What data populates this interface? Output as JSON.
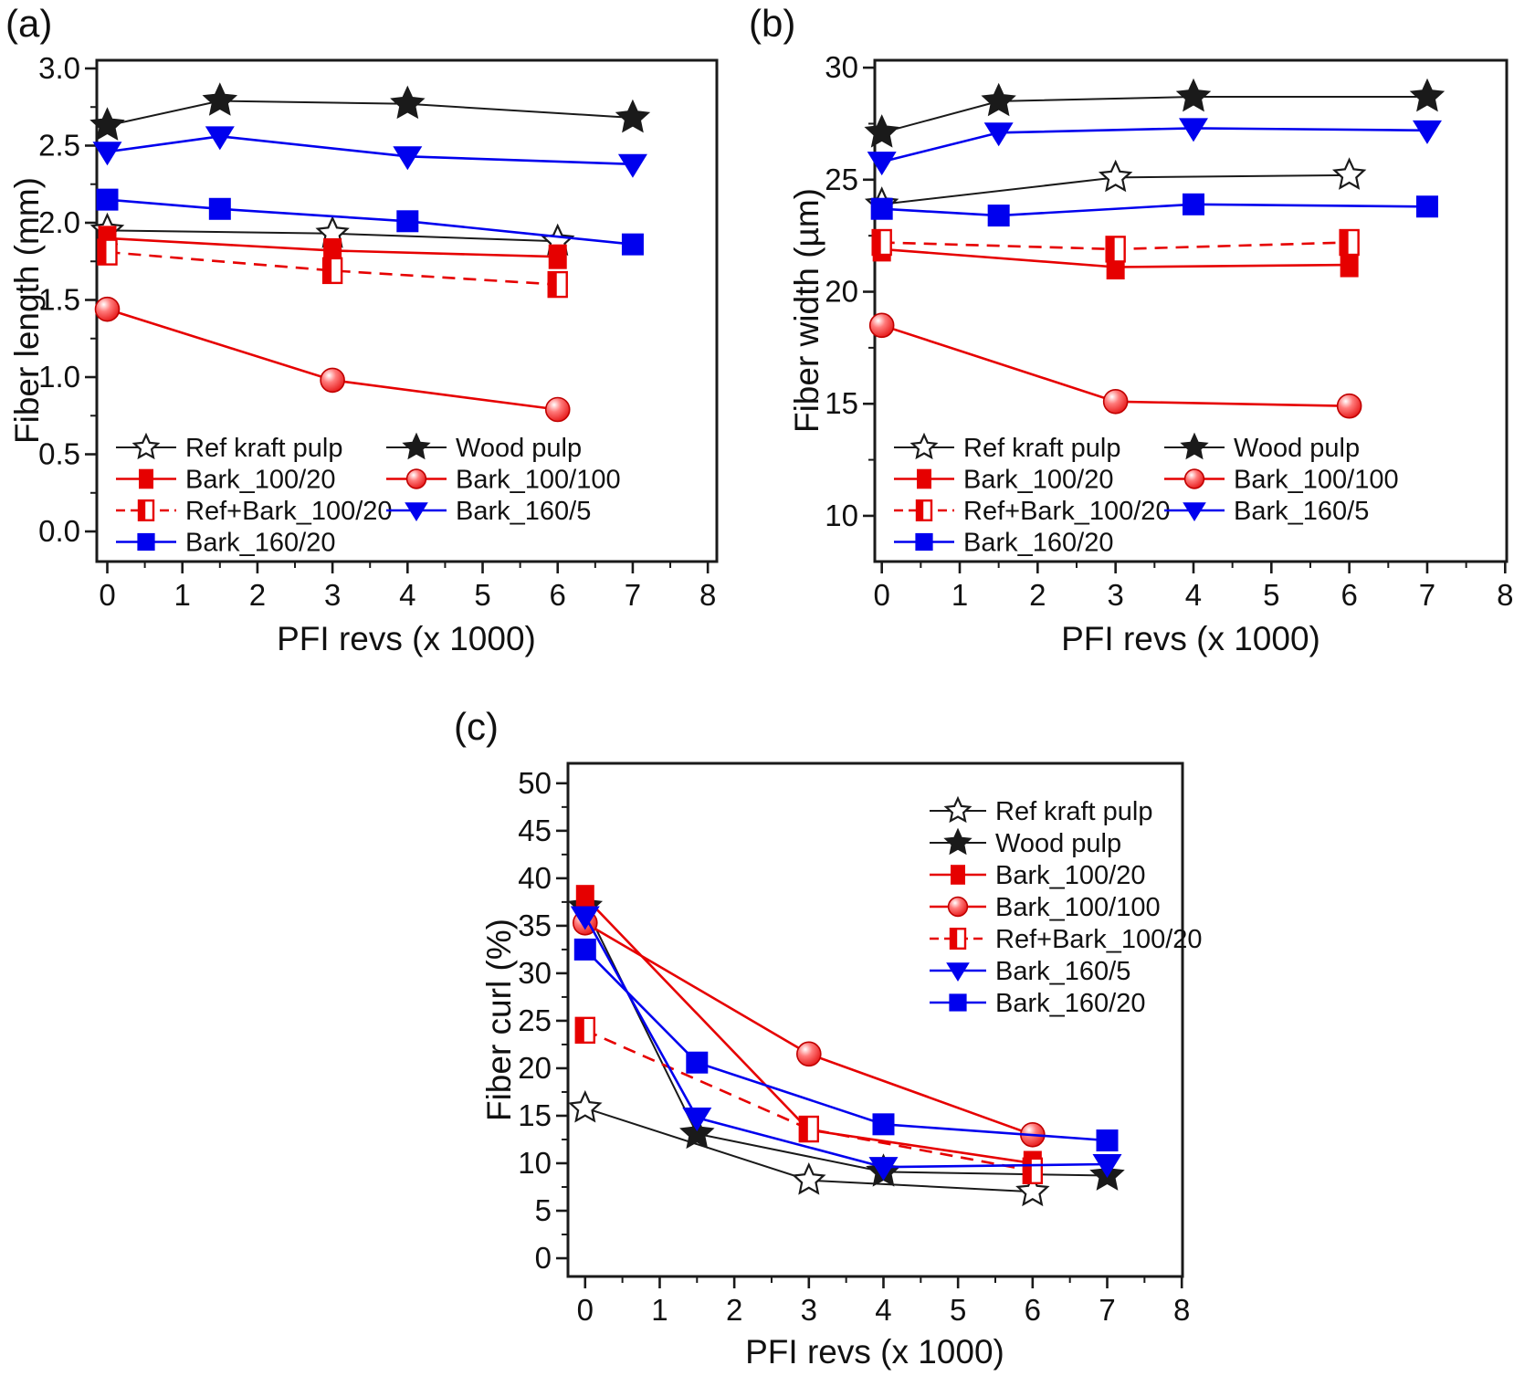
{
  "figure": {
    "description": "Three line charts of pulp fiber properties versus PFI refining revolutions"
  },
  "series_styles": {
    "Ref kraft pulp": {
      "color": "#1a1a1a",
      "marker": "star-open",
      "line": "solid",
      "width": 2.0
    },
    "Wood pulp": {
      "color": "#1a1a1a",
      "marker": "star-filled",
      "line": "solid",
      "width": 2.0
    },
    "Bark_100/20": {
      "color": "#e60000",
      "marker": "square",
      "line": "solid",
      "width": 2.6,
      "msize": [
        20,
        27
      ]
    },
    "Bark_100/100": {
      "color": "#e60000",
      "marker": "ball",
      "line": "solid",
      "width": 2.6
    },
    "Ref+Bark_100/20": {
      "color": "#e60000",
      "marker": "square-half",
      "line": "dashed",
      "width": 2.6,
      "msize": [
        20,
        27
      ]
    },
    "Bark_160/5": {
      "color": "#0000ee",
      "marker": "triangle-down",
      "line": "solid",
      "width": 2.6
    },
    "Bark_160/20": {
      "color": "#0000ee",
      "marker": "square",
      "line": "solid",
      "width": 2.6,
      "msize": [
        24,
        24
      ]
    }
  },
  "chart_data": [
    {
      "id": "a",
      "type": "line",
      "panel_label": "(a)",
      "xlabel": "PFI revs (x 1000)",
      "ylabel": "Fiber length (mm)",
      "xlim": [
        -0.14,
        8.12
      ],
      "ylim": [
        -0.195,
        3.053
      ],
      "xticks": {
        "start": 0,
        "end": 8,
        "step": 1,
        "minor": 0.5,
        "decimals": 0
      },
      "yticks": {
        "start": 0,
        "end": 3,
        "step": 0.5,
        "minor": 0.25,
        "decimals": 1
      },
      "grid": false,
      "legend": {
        "position": "inside-bottom-left",
        "columns": 2
      },
      "series": [
        {
          "name": "Ref kraft pulp",
          "points": [
            [
              0,
              1.95
            ],
            [
              3,
              1.93
            ],
            [
              6,
              1.88
            ]
          ]
        },
        {
          "name": "Wood pulp",
          "points": [
            [
              0,
              2.63
            ],
            [
              1.5,
              2.79
            ],
            [
              4,
              2.77
            ],
            [
              7,
              2.68
            ]
          ]
        },
        {
          "name": "Bark_100/20",
          "points": [
            [
              0,
              1.9
            ],
            [
              3,
              1.82
            ],
            [
              6,
              1.78
            ]
          ]
        },
        {
          "name": "Bark_100/100",
          "points": [
            [
              0,
              1.44
            ],
            [
              3,
              0.98
            ],
            [
              6,
              0.79
            ]
          ]
        },
        {
          "name": "Ref+Bark_100/20",
          "points": [
            [
              0,
              1.81
            ],
            [
              3,
              1.69
            ],
            [
              6,
              1.6
            ]
          ]
        },
        {
          "name": "Bark_160/5",
          "points": [
            [
              0,
              2.46
            ],
            [
              1.5,
              2.56
            ],
            [
              4,
              2.43
            ],
            [
              7,
              2.38
            ]
          ]
        },
        {
          "name": "Bark_160/20",
          "points": [
            [
              0,
              2.15
            ],
            [
              1.5,
              2.09
            ],
            [
              4,
              2.01
            ],
            [
              7,
              1.86
            ]
          ]
        }
      ]
    },
    {
      "id": "b",
      "type": "line",
      "panel_label": "(b)",
      "xlabel": "PFI revs (x 1000)",
      "ylabel": "Fiber width (µm)",
      "xlim": [
        -0.09,
        8.02
      ],
      "ylim": [
        7.96,
        30.33
      ],
      "xticks": {
        "start": 0,
        "end": 8,
        "step": 1,
        "minor": 0.5,
        "decimals": 0
      },
      "yticks": {
        "start": 10,
        "end": 30,
        "step": 5,
        "minor": 2.5,
        "decimals": 0
      },
      "grid": false,
      "legend": {
        "position": "inside-bottom-left",
        "columns": 2
      },
      "series": [
        {
          "name": "Ref kraft pulp",
          "points": [
            [
              0,
              23.9
            ],
            [
              3,
              25.1
            ],
            [
              6,
              25.2
            ]
          ]
        },
        {
          "name": "Wood pulp",
          "points": [
            [
              0,
              27.1
            ],
            [
              1.5,
              28.5
            ],
            [
              4,
              28.7
            ],
            [
              7,
              28.7
            ]
          ]
        },
        {
          "name": "Bark_100/20",
          "points": [
            [
              0,
              21.9
            ],
            [
              3,
              21.1
            ],
            [
              6,
              21.2
            ]
          ]
        },
        {
          "name": "Bark_100/100",
          "points": [
            [
              0,
              18.5
            ],
            [
              3,
              15.1
            ],
            [
              6,
              14.9
            ]
          ]
        },
        {
          "name": "Ref+Bark_100/20",
          "points": [
            [
              0,
              22.2
            ],
            [
              3,
              21.9
            ],
            [
              6,
              22.2
            ]
          ]
        },
        {
          "name": "Bark_160/5",
          "points": [
            [
              0,
              25.8
            ],
            [
              1.5,
              27.1
            ],
            [
              4,
              27.3
            ],
            [
              7,
              27.2
            ]
          ]
        },
        {
          "name": "Bark_160/20",
          "points": [
            [
              0,
              23.7
            ],
            [
              1.5,
              23.4
            ],
            [
              4,
              23.9
            ],
            [
              7,
              23.8
            ]
          ]
        }
      ]
    },
    {
      "id": "c",
      "type": "line",
      "panel_label": "(c)",
      "xlabel": "PFI revs (x 1000)",
      "ylabel": "Fiber curl (%)",
      "xlim": [
        -0.23,
        8.01
      ],
      "ylim": [
        -1.92,
        52.1
      ],
      "xticks": {
        "start": 0,
        "end": 8,
        "step": 1,
        "minor": 0.5,
        "decimals": 0
      },
      "yticks": {
        "start": 0,
        "end": 50,
        "step": 5,
        "minor": 2.5,
        "decimals": 0
      },
      "grid": false,
      "legend": {
        "position": "inside-top-right",
        "columns": 1
      },
      "series": [
        {
          "name": "Ref kraft pulp",
          "points": [
            [
              0,
              15.8
            ],
            [
              3,
              8.2
            ],
            [
              6,
              7.0
            ]
          ]
        },
        {
          "name": "Wood pulp",
          "points": [
            [
              0,
              37.0
            ],
            [
              1.5,
              13.1
            ],
            [
              4,
              9.1
            ],
            [
              7,
              8.7
            ]
          ]
        },
        {
          "name": "Bark_100/20",
          "points": [
            [
              0,
              38.0
            ],
            [
              3,
              13.5
            ],
            [
              6,
              10.0
            ]
          ]
        },
        {
          "name": "Bark_100/100",
          "points": [
            [
              0,
              35.3
            ],
            [
              3,
              21.5
            ],
            [
              6,
              13.0
            ]
          ]
        },
        {
          "name": "Ref+Bark_100/20",
          "points": [
            [
              0,
              24.0
            ],
            [
              3,
              13.6
            ],
            [
              6,
              9.2
            ]
          ]
        },
        {
          "name": "Bark_160/5",
          "points": [
            [
              0,
              36.0
            ],
            [
              1.5,
              14.8
            ],
            [
              4,
              9.6
            ],
            [
              7,
              9.9
            ]
          ]
        },
        {
          "name": "Bark_160/20",
          "points": [
            [
              0,
              32.5
            ],
            [
              1.5,
              20.6
            ],
            [
              4,
              14.1
            ],
            [
              7,
              12.4
            ]
          ]
        }
      ]
    }
  ]
}
